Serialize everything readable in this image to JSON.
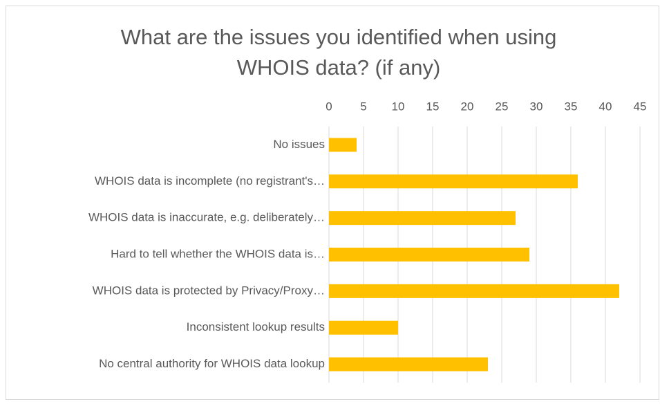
{
  "chart_data": {
    "type": "bar",
    "orientation": "horizontal",
    "title": [
      "What are the issues you identified when using",
      "WHOIS data? (if any)"
    ],
    "categories": [
      "No issues",
      "WHOIS data is incomplete (no registrant's…",
      "WHOIS data is inaccurate, e.g. deliberately…",
      "Hard to tell whether the WHOIS data is…",
      "WHOIS data is protected by Privacy/Proxy…",
      "Inconsistent lookup results",
      "No central authority for WHOIS data lookup"
    ],
    "values": [
      4,
      36,
      27,
      29,
      42,
      10,
      23
    ],
    "color": "#ffc000",
    "xlim": [
      0,
      45
    ],
    "xticks": [
      0,
      5,
      10,
      15,
      20,
      25,
      30,
      35,
      40,
      45
    ],
    "grid": true
  }
}
